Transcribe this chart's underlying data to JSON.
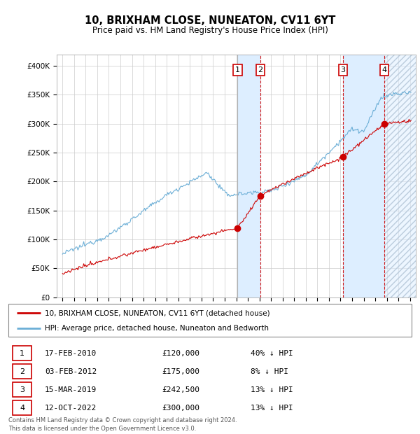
{
  "title": "10, BRIXHAM CLOSE, NUNEATON, CV11 6YT",
  "subtitle": "Price paid vs. HM Land Registry's House Price Index (HPI)",
  "hpi_color": "#6baed6",
  "price_color": "#cc0000",
  "vline_color_solid": "#aaaaaa",
  "vline_color_dashed": "#cc0000",
  "shade_color": "#ddeeff",
  "ylim": [
    0,
    420000
  ],
  "yticks": [
    0,
    50000,
    100000,
    150000,
    200000,
    250000,
    300000,
    350000,
    400000
  ],
  "xlim": [
    1994.5,
    2025.5
  ],
  "xticks": [
    1995,
    1996,
    1997,
    1998,
    1999,
    2000,
    2001,
    2002,
    2003,
    2004,
    2005,
    2006,
    2007,
    2008,
    2009,
    2010,
    2011,
    2012,
    2013,
    2014,
    2015,
    2016,
    2017,
    2018,
    2019,
    2020,
    2021,
    2022,
    2023,
    2024,
    2025
  ],
  "transactions": [
    {
      "num": 1,
      "date_str": "17-FEB-2010",
      "date_x": 2010.12,
      "price": 120000,
      "pct": "40%",
      "direction": "↓"
    },
    {
      "num": 2,
      "date_str": "03-FEB-2012",
      "date_x": 2012.09,
      "price": 175000,
      "pct": "8%",
      "direction": "↓"
    },
    {
      "num": 3,
      "date_str": "15-MAR-2019",
      "date_x": 2019.21,
      "price": 242500,
      "pct": "13%",
      "direction": "↓"
    },
    {
      "num": 4,
      "date_str": "12-OCT-2022",
      "date_x": 2022.79,
      "price": 300000,
      "pct": "13%",
      "direction": "↓"
    }
  ],
  "legend_property_label": "10, BRIXHAM CLOSE, NUNEATON, CV11 6YT (detached house)",
  "legend_hpi_label": "HPI: Average price, detached house, Nuneaton and Bedworth",
  "footer": "Contains HM Land Registry data © Crown copyright and database right 2024.\nThis data is licensed under the Open Government Licence v3.0."
}
